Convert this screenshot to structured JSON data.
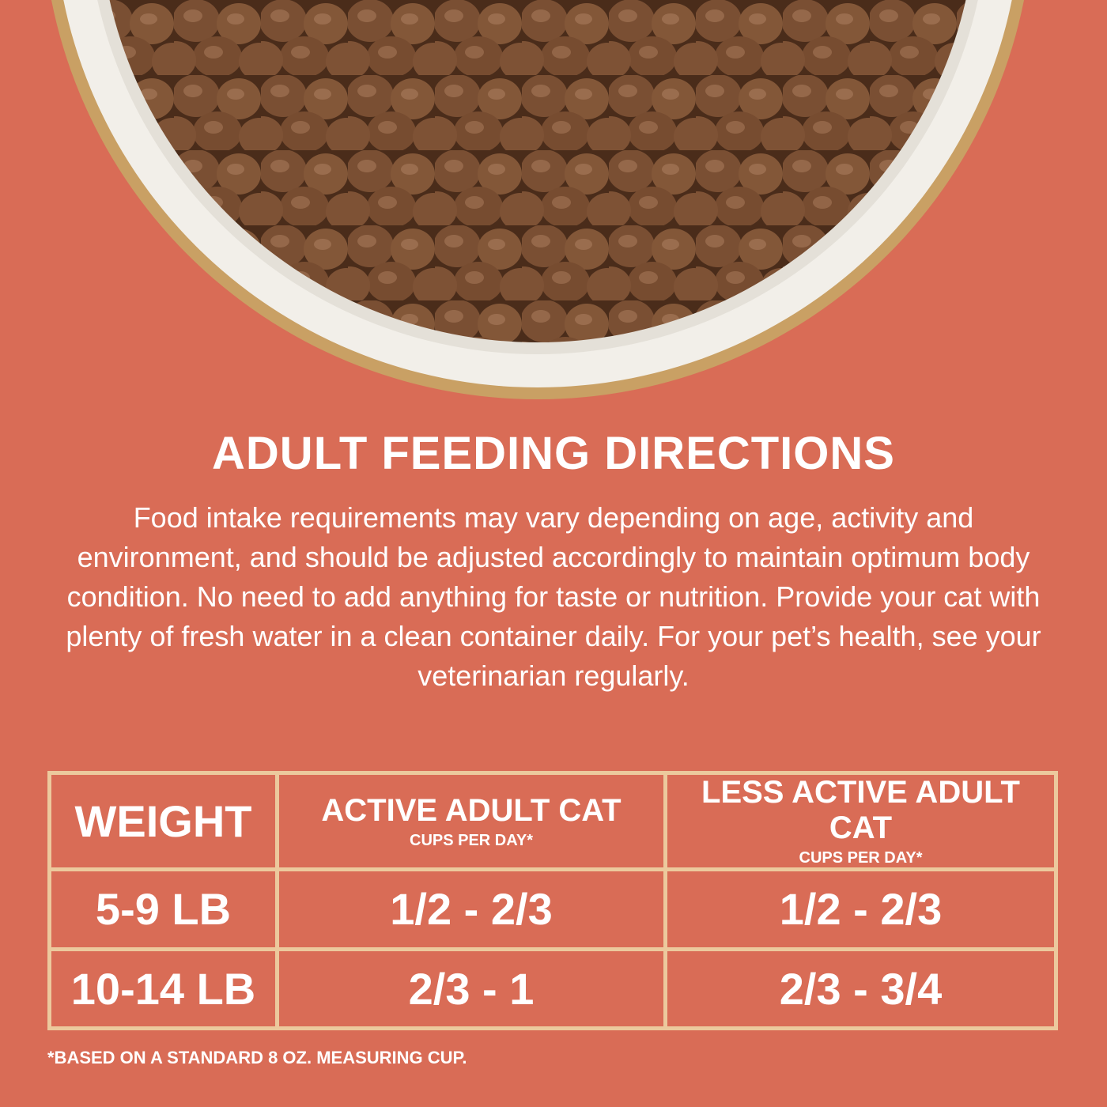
{
  "title": "ADULT FEEDING DIRECTIONS",
  "description": "Food intake requirements may vary depending on age, activity and environment, and should be adjusted accordingly to maintain optimum body condition. No need to add anything for taste or nutrition. Provide your cat with plenty of fresh water in a clean container daily. For your pet’s health, see your veterinarian regularly.",
  "table": {
    "header": [
      {
        "label": "WEIGHT"
      },
      {
        "label": "ACTIVE ADULT CAT",
        "sublabel": "CUPS PER DAY*"
      },
      {
        "label": "LESS ACTIVE ADULT CAT",
        "sublabel": "CUPS PER DAY*"
      }
    ],
    "rows": [
      [
        "5-9 LB",
        "1/2 - 2/3",
        "1/2 - 2/3"
      ],
      [
        "10-14 LB",
        "2/3 - 1",
        "2/3 - 3/4"
      ]
    ]
  },
  "footnote": "*BASED ON A STANDARD 8 OZ. MEASURING CUP."
}
